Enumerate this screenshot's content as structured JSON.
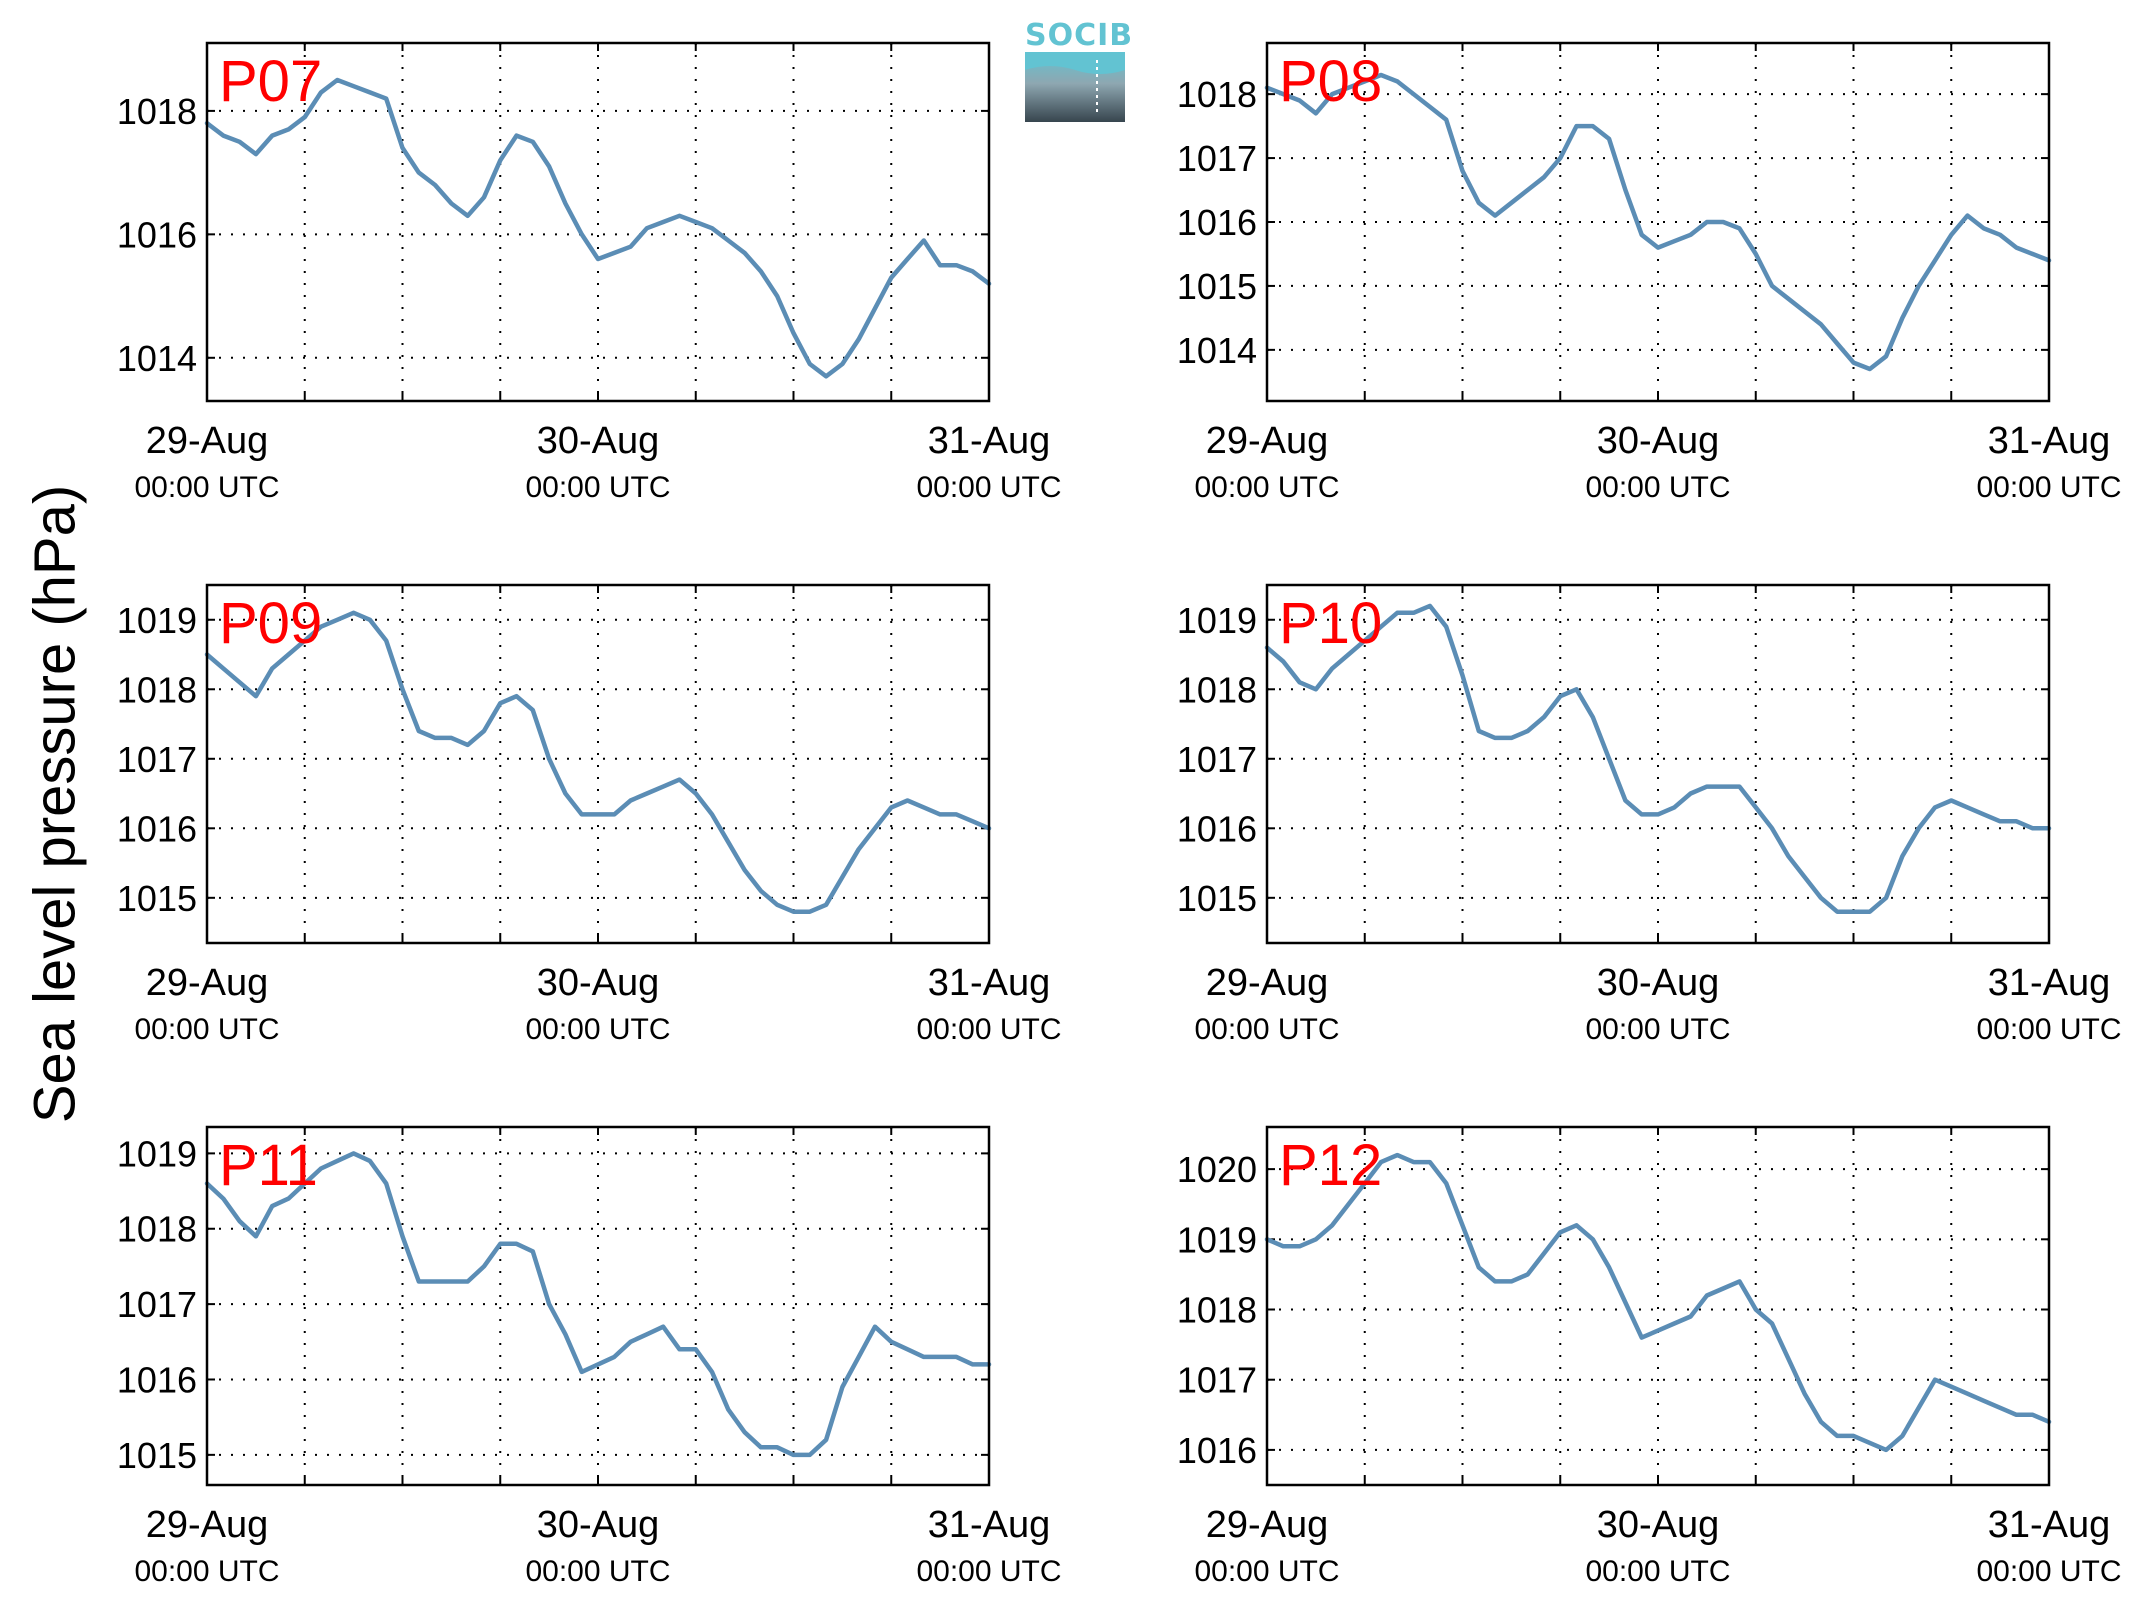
{
  "figure": {
    "ylabel": "Sea level pressure (hPa)",
    "logo_text": "SOCIB",
    "colors": {
      "line": "#5b8db5",
      "station_label": "#ff0000",
      "logo_accent": "#62c3d2",
      "logo_dark": "#37454e"
    }
  },
  "chart_data": [
    {
      "type": "line",
      "title": "P07",
      "x_tick_labels": [
        [
          "29-Aug",
          "00:00 UTC"
        ],
        [
          "30-Aug",
          "00:00 UTC"
        ],
        [
          "31-Aug",
          "00:00 UTC"
        ]
      ],
      "x_unit": "hours since 29-Aug 00:00 UTC",
      "xlim": [
        0,
        48
      ],
      "ylim": [
        1013.3,
        1019.1
      ],
      "yticks": [
        1014,
        1016,
        1018
      ],
      "grid": true,
      "series": [
        {
          "x": [
            0,
            1,
            2,
            3,
            4,
            5,
            6,
            7,
            8,
            9,
            10,
            11,
            12,
            13,
            14,
            15,
            16,
            17,
            18,
            19,
            20,
            21,
            22,
            23,
            24,
            25,
            26,
            27,
            28,
            29,
            30,
            31,
            32,
            33,
            34,
            35,
            36,
            37,
            38,
            39,
            40,
            41,
            42,
            43,
            44,
            45,
            46,
            47,
            48
          ],
          "values": [
            1017.8,
            1017.6,
            1017.5,
            1017.3,
            1017.6,
            1017.7,
            1017.9,
            1018.3,
            1018.5,
            1018.4,
            1018.3,
            1018.2,
            1017.4,
            1017.0,
            1016.8,
            1016.5,
            1016.3,
            1016.6,
            1017.2,
            1017.6,
            1017.5,
            1017.1,
            1016.5,
            1016.0,
            1015.6,
            1015.7,
            1015.8,
            1016.1,
            1016.2,
            1016.3,
            1016.2,
            1016.1,
            1015.9,
            1015.7,
            1015.4,
            1015.0,
            1014.4,
            1013.9,
            1013.7,
            1013.9,
            1014.3,
            1014.8,
            1015.3,
            1015.6,
            1015.9,
            1015.5,
            1015.5,
            1015.4,
            1015.2
          ]
        }
      ]
    },
    {
      "type": "line",
      "title": "P08",
      "x_tick_labels": [
        [
          "29-Aug",
          "00:00 UTC"
        ],
        [
          "30-Aug",
          "00:00 UTC"
        ],
        [
          "31-Aug",
          "00:00 UTC"
        ]
      ],
      "x_unit": "hours since 29-Aug 00:00 UTC",
      "xlim": [
        0,
        48
      ],
      "ylim": [
        1013.2,
        1018.8
      ],
      "yticks": [
        1014,
        1015,
        1016,
        1017,
        1018
      ],
      "grid": true,
      "series": [
        {
          "x": [
            0,
            1,
            2,
            3,
            4,
            5,
            6,
            7,
            8,
            9,
            10,
            11,
            12,
            13,
            14,
            15,
            16,
            17,
            18,
            19,
            20,
            21,
            22,
            23,
            24,
            25,
            26,
            27,
            28,
            29,
            30,
            31,
            32,
            33,
            34,
            35,
            36,
            37,
            38,
            39,
            40,
            41,
            42,
            43,
            44,
            45,
            46,
            47,
            48
          ],
          "values": [
            1018.1,
            1018.0,
            1017.9,
            1017.7,
            1018.0,
            1018.1,
            1018.2,
            1018.3,
            1018.2,
            1018.0,
            1017.8,
            1017.6,
            1016.8,
            1016.3,
            1016.1,
            1016.3,
            1016.5,
            1016.7,
            1017.0,
            1017.5,
            1017.5,
            1017.3,
            1016.5,
            1015.8,
            1015.6,
            1015.7,
            1015.8,
            1016.0,
            1016.0,
            1015.9,
            1015.5,
            1015.0,
            1014.8,
            1014.6,
            1014.4,
            1014.1,
            1013.8,
            1013.7,
            1013.9,
            1014.5,
            1015.0,
            1015.4,
            1015.8,
            1016.1,
            1015.9,
            1015.8,
            1015.6,
            1015.5,
            1015.4
          ]
        }
      ]
    },
    {
      "type": "line",
      "title": "P09",
      "x_tick_labels": [
        [
          "29-Aug",
          "00:00 UTC"
        ],
        [
          "30-Aug",
          "00:00 UTC"
        ],
        [
          "31-Aug",
          "00:00 UTC"
        ]
      ],
      "x_unit": "hours since 29-Aug 00:00 UTC",
      "xlim": [
        0,
        48
      ],
      "ylim": [
        1014.35,
        1019.5
      ],
      "yticks": [
        1015,
        1016,
        1017,
        1018,
        1019
      ],
      "grid": true,
      "series": [
        {
          "x": [
            0,
            1,
            2,
            3,
            4,
            5,
            6,
            7,
            8,
            9,
            10,
            11,
            12,
            13,
            14,
            15,
            16,
            17,
            18,
            19,
            20,
            21,
            22,
            23,
            24,
            25,
            26,
            27,
            28,
            29,
            30,
            31,
            32,
            33,
            34,
            35,
            36,
            37,
            38,
            39,
            40,
            41,
            42,
            43,
            44,
            45,
            46,
            47,
            48
          ],
          "values": [
            1018.5,
            1018.3,
            1018.1,
            1017.9,
            1018.3,
            1018.5,
            1018.7,
            1018.9,
            1019.0,
            1019.1,
            1019.0,
            1018.7,
            1018.0,
            1017.4,
            1017.3,
            1017.3,
            1017.2,
            1017.4,
            1017.8,
            1017.9,
            1017.7,
            1017.0,
            1016.5,
            1016.2,
            1016.2,
            1016.2,
            1016.4,
            1016.5,
            1016.6,
            1016.7,
            1016.5,
            1016.2,
            1015.8,
            1015.4,
            1015.1,
            1014.9,
            1014.8,
            1014.8,
            1014.9,
            1015.3,
            1015.7,
            1016.0,
            1016.3,
            1016.4,
            1016.3,
            1016.2,
            1016.2,
            1016.1,
            1016.0
          ]
        }
      ]
    },
    {
      "type": "line",
      "title": "P10",
      "x_tick_labels": [
        [
          "29-Aug",
          "00:00 UTC"
        ],
        [
          "30-Aug",
          "00:00 UTC"
        ],
        [
          "31-Aug",
          "00:00 UTC"
        ]
      ],
      "x_unit": "hours since 29-Aug 00:00 UTC",
      "xlim": [
        0,
        48
      ],
      "ylim": [
        1014.35,
        1019.5
      ],
      "yticks": [
        1015,
        1016,
        1017,
        1018,
        1019
      ],
      "grid": true,
      "series": [
        {
          "x": [
            0,
            1,
            2,
            3,
            4,
            5,
            6,
            7,
            8,
            9,
            10,
            11,
            12,
            13,
            14,
            15,
            16,
            17,
            18,
            19,
            20,
            21,
            22,
            23,
            24,
            25,
            26,
            27,
            28,
            29,
            30,
            31,
            32,
            33,
            34,
            35,
            36,
            37,
            38,
            39,
            40,
            41,
            42,
            43,
            44,
            45,
            46,
            47,
            48
          ],
          "values": [
            1018.6,
            1018.4,
            1018.1,
            1018.0,
            1018.3,
            1018.5,
            1018.7,
            1018.9,
            1019.1,
            1019.1,
            1019.2,
            1018.9,
            1018.2,
            1017.4,
            1017.3,
            1017.3,
            1017.4,
            1017.6,
            1017.9,
            1018.0,
            1017.6,
            1017.0,
            1016.4,
            1016.2,
            1016.2,
            1016.3,
            1016.5,
            1016.6,
            1016.6,
            1016.6,
            1016.3,
            1016.0,
            1015.6,
            1015.3,
            1015.0,
            1014.8,
            1014.8,
            1014.8,
            1015.0,
            1015.6,
            1016.0,
            1016.3,
            1016.4,
            1016.3,
            1016.2,
            1016.1,
            1016.1,
            1016.0,
            1016.0
          ]
        }
      ]
    },
    {
      "type": "line",
      "title": "P11",
      "x_tick_labels": [
        [
          "29-Aug",
          "00:00 UTC"
        ],
        [
          "30-Aug",
          "00:00 UTC"
        ],
        [
          "31-Aug",
          "00:00 UTC"
        ]
      ],
      "x_unit": "hours since 29-Aug 00:00 UTC",
      "xlim": [
        0,
        48
      ],
      "ylim": [
        1014.6,
        1019.35
      ],
      "yticks": [
        1015,
        1016,
        1017,
        1018,
        1019
      ],
      "grid": true,
      "series": [
        {
          "x": [
            0,
            1,
            2,
            3,
            4,
            5,
            6,
            7,
            8,
            9,
            10,
            11,
            12,
            13,
            14,
            15,
            16,
            17,
            18,
            19,
            20,
            21,
            22,
            23,
            24,
            25,
            26,
            27,
            28,
            29,
            30,
            31,
            32,
            33,
            34,
            35,
            36,
            37,
            38,
            39,
            40,
            41,
            42,
            43,
            44,
            45,
            46,
            47,
            48
          ],
          "values": [
            1018.6,
            1018.4,
            1018.1,
            1017.9,
            1018.3,
            1018.4,
            1018.6,
            1018.8,
            1018.9,
            1019.0,
            1018.9,
            1018.6,
            1017.9,
            1017.3,
            1017.3,
            1017.3,
            1017.3,
            1017.5,
            1017.8,
            1017.8,
            1017.7,
            1017.0,
            1016.6,
            1016.1,
            1016.2,
            1016.3,
            1016.5,
            1016.6,
            1016.7,
            1016.4,
            1016.4,
            1016.1,
            1015.6,
            1015.3,
            1015.1,
            1015.1,
            1015.0,
            1015.0,
            1015.2,
            1015.9,
            1016.3,
            1016.7,
            1016.5,
            1016.4,
            1016.3,
            1016.3,
            1016.3,
            1016.2,
            1016.2
          ]
        }
      ]
    },
    {
      "type": "line",
      "title": "P12",
      "x_tick_labels": [
        [
          "29-Aug",
          "00:00 UTC"
        ],
        [
          "30-Aug",
          "00:00 UTC"
        ],
        [
          "31-Aug",
          "00:00 UTC"
        ]
      ],
      "x_unit": "hours since 29-Aug 00:00 UTC",
      "xlim": [
        0,
        48
      ],
      "ylim": [
        1015.5,
        1020.6
      ],
      "yticks": [
        1016,
        1017,
        1018,
        1019,
        1020
      ],
      "grid": true,
      "series": [
        {
          "x": [
            0,
            1,
            2,
            3,
            4,
            5,
            6,
            7,
            8,
            9,
            10,
            11,
            12,
            13,
            14,
            15,
            16,
            17,
            18,
            19,
            20,
            21,
            22,
            23,
            24,
            25,
            26,
            27,
            28,
            29,
            30,
            31,
            32,
            33,
            34,
            35,
            36,
            37,
            38,
            39,
            40,
            41,
            42,
            43,
            44,
            45,
            46,
            47,
            48
          ],
          "values": [
            1019.0,
            1018.9,
            1018.9,
            1019.0,
            1019.2,
            1019.5,
            1019.8,
            1020.1,
            1020.2,
            1020.1,
            1020.1,
            1019.8,
            1019.2,
            1018.6,
            1018.4,
            1018.4,
            1018.5,
            1018.8,
            1019.1,
            1019.2,
            1019.0,
            1018.6,
            1018.1,
            1017.6,
            1017.7,
            1017.8,
            1017.9,
            1018.2,
            1018.3,
            1018.4,
            1018.0,
            1017.8,
            1017.3,
            1016.8,
            1016.4,
            1016.2,
            1016.2,
            1016.1,
            1016.0,
            1016.2,
            1016.6,
            1017.0,
            1016.9,
            1016.8,
            1016.7,
            1016.6,
            1016.5,
            1016.5,
            1016.4
          ]
        }
      ]
    }
  ]
}
